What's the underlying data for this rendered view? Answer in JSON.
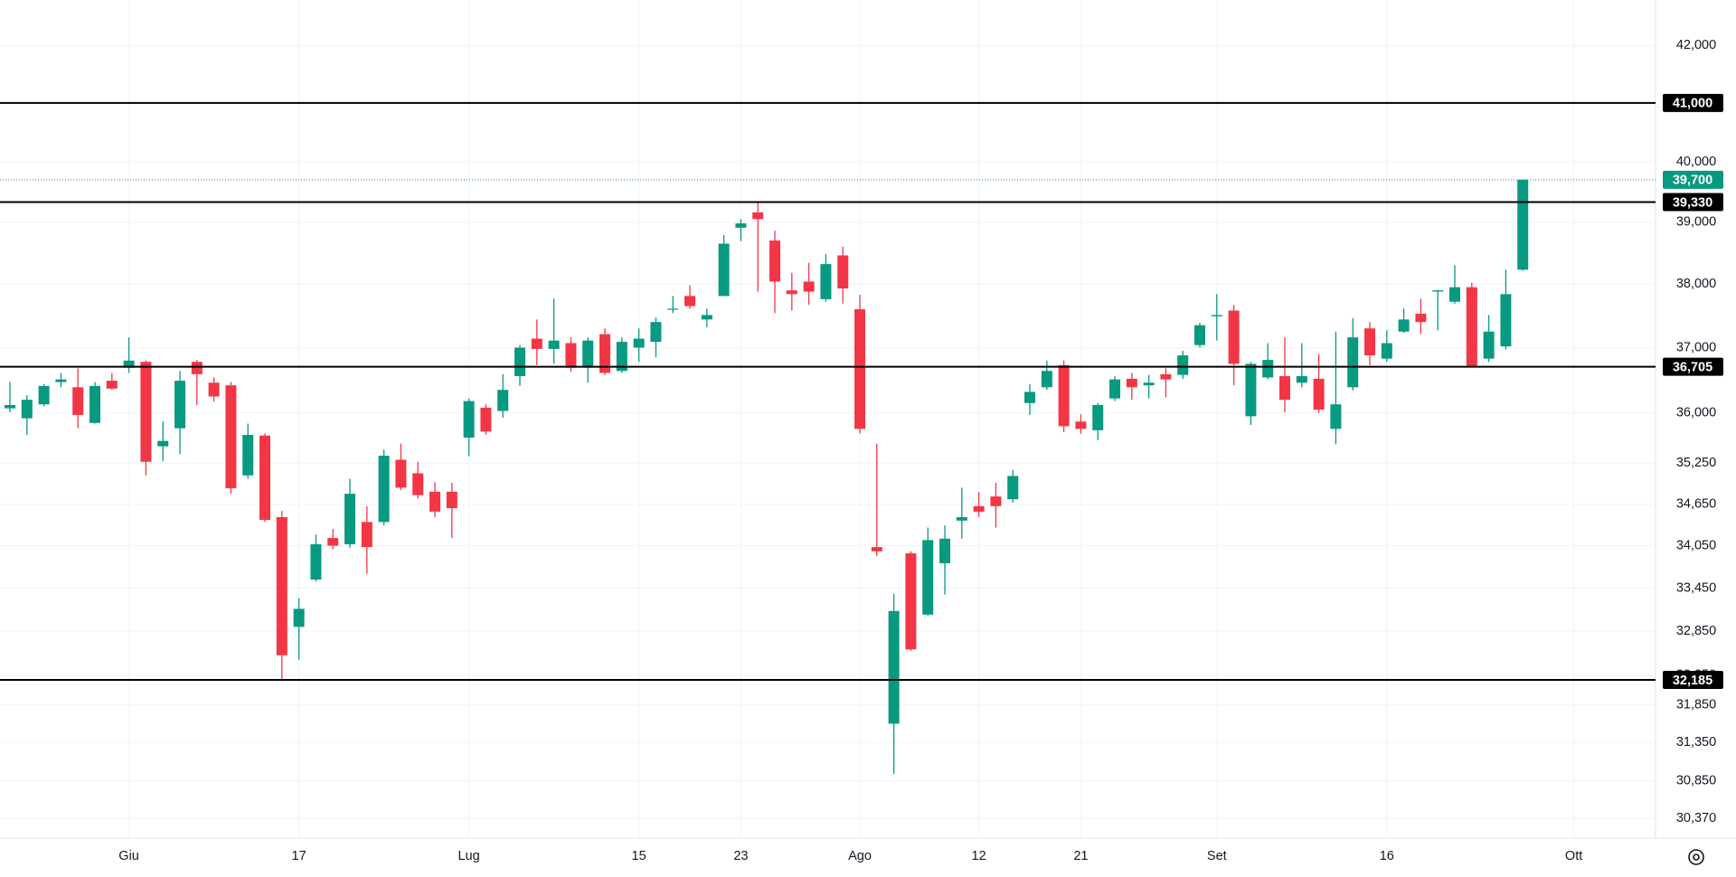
{
  "chart_data": {
    "type": "candlestick",
    "categories": [
      null,
      null,
      null,
      null,
      null,
      null,
      null,
      "Giu",
      null,
      null,
      null,
      null,
      null,
      null,
      null,
      null,
      null,
      "17",
      null,
      null,
      null,
      null,
      null,
      null,
      null,
      null,
      null,
      "Lug",
      null,
      null,
      null,
      null,
      null,
      null,
      null,
      null,
      null,
      "15",
      null,
      null,
      null,
      null,
      null,
      "23",
      null,
      null,
      null,
      null,
      null,
      null,
      "Ago",
      null,
      null,
      null,
      null,
      null,
      null,
      "12",
      null,
      null,
      null,
      null,
      null,
      "21",
      null,
      null,
      null,
      null,
      null,
      null,
      null,
      "Set",
      null,
      null,
      null,
      null,
      null,
      null,
      null,
      null,
      null,
      "16",
      null,
      null,
      null,
      null,
      null,
      null,
      null,
      null,
      null,
      null,
      "Ott"
    ],
    "open": [
      36070,
      35920,
      36130,
      36470,
      36390,
      35850,
      36490,
      36690,
      36780,
      35500,
      35770,
      36780,
      36460,
      36420,
      35070,
      35660,
      34460,
      32910,
      33570,
      34160,
      34070,
      34390,
      34390,
      35300,
      35100,
      34830,
      34830,
      35630,
      36080,
      36030,
      36560,
      37140,
      36980,
      37070,
      36690,
      37210,
      36640,
      37000,
      37090,
      37600,
      37810,
      37440,
      37810,
      38910,
      39160,
      38700,
      37900,
      38040,
      37760,
      38460,
      37600,
      34030,
      31600,
      33940,
      33080,
      33800,
      34410,
      34620,
      34760,
      34720,
      36150,
      36390,
      36730,
      35870,
      35740,
      36220,
      36520,
      36420,
      36590,
      36580,
      37040,
      37490,
      37580,
      35950,
      36540,
      36560,
      36460,
      36520,
      35760,
      36390,
      37300,
      36830,
      37250,
      37530,
      37880,
      37720,
      37950,
      36830,
      37020,
      38230,
      null,
      null,
      null
    ],
    "high": [
      36470,
      36270,
      36440,
      36610,
      36680,
      36470,
      36610,
      37160,
      36800,
      35870,
      36640,
      36810,
      36540,
      36470,
      35840,
      35690,
      34550,
      33310,
      34210,
      34290,
      35020,
      34620,
      35450,
      35540,
      35270,
      34970,
      34960,
      36220,
      36130,
      36590,
      37040,
      37440,
      37770,
      37160,
      37160,
      37300,
      37160,
      37300,
      37470,
      37810,
      37980,
      37610,
      38790,
      39050,
      39320,
      38860,
      38180,
      38340,
      38480,
      38600,
      37830,
      35540,
      33370,
      33970,
      34310,
      34340,
      34890,
      34830,
      34960,
      35150,
      36440,
      36800,
      36800,
      35980,
      36150,
      36560,
      36610,
      36580,
      36680,
      36950,
      37390,
      37840,
      37670,
      36780,
      37070,
      37160,
      37070,
      36900,
      37250,
      37460,
      37400,
      37270,
      37610,
      37770,
      37910,
      38300,
      38020,
      37510,
      38230,
      39700,
      null,
      null,
      null
    ],
    "low": [
      36010,
      35670,
      36100,
      36390,
      35770,
      35840,
      36350,
      36610,
      35070,
      35280,
      35380,
      36120,
      36170,
      34800,
      35020,
      34390,
      32190,
      32460,
      33540,
      34000,
      34020,
      33650,
      34340,
      34850,
      34730,
      34460,
      34160,
      35350,
      35670,
      35930,
      36410,
      36730,
      36750,
      36630,
      36460,
      36580,
      36610,
      36780,
      36850,
      37540,
      37610,
      37320,
      37810,
      38690,
      37880,
      37540,
      37580,
      37670,
      37720,
      37690,
      35690,
      33900,
      30940,
      32580,
      33060,
      33360,
      34150,
      34460,
      34310,
      34670,
      35970,
      36350,
      35710,
      35690,
      35590,
      36180,
      36200,
      36220,
      36240,
      36520,
      37000,
      37110,
      36420,
      35820,
      36510,
      36010,
      36390,
      36000,
      35530,
      36340,
      36730,
      36780,
      37230,
      37210,
      37270,
      37690,
      36710,
      36780,
      36970,
      38210,
      null,
      null,
      null
    ],
    "close": [
      36120,
      36200,
      36410,
      36510,
      35970,
      36410,
      36370,
      36800,
      35270,
      35580,
      36490,
      36590,
      36250,
      34880,
      35670,
      34420,
      32520,
      33160,
      34070,
      34050,
      34800,
      34030,
      35360,
      34890,
      34780,
      34540,
      34590,
      36180,
      35720,
      36350,
      37000,
      36980,
      37110,
      36690,
      37110,
      36610,
      37090,
      37140,
      37400,
      37610,
      37650,
      37510,
      38650,
      38980,
      39050,
      38040,
      37840,
      37880,
      38320,
      37930,
      35760,
      33970,
      33130,
      32600,
      34130,
      34150,
      34460,
      34540,
      34620,
      35060,
      36320,
      36640,
      35800,
      35760,
      36120,
      36510,
      36390,
      36460,
      36510,
      36880,
      37350,
      37510,
      36750,
      36750,
      36810,
      36200,
      36560,
      36050,
      36130,
      37160,
      36880,
      37070,
      37440,
      37400,
      37900,
      37950,
      36710,
      37250,
      37840,
      39700,
      null,
      null,
      null
    ],
    "up_color": "#089981",
    "down_color": "#f23645",
    "log_scale": true,
    "grid": true,
    "ylim": [
      30130,
      42810
    ],
    "yticks": [
      {
        "value": 42000,
        "label": "42,000"
      },
      {
        "value": 40000,
        "label": "40,000"
      },
      {
        "value": 39000,
        "label": "39,000"
      },
      {
        "value": 38000,
        "label": "38,000"
      },
      {
        "value": 37000,
        "label": "37,000"
      },
      {
        "value": 36000,
        "label": "36,000"
      },
      {
        "value": 35250,
        "label": "35,250"
      },
      {
        "value": 34650,
        "label": "34,650"
      },
      {
        "value": 34050,
        "label": "34,050"
      },
      {
        "value": 33450,
        "label": "33,450"
      },
      {
        "value": 32850,
        "label": "32,850"
      },
      {
        "value": 32250,
        "label": "32,250"
      },
      {
        "value": 31850,
        "label": "31,850"
      },
      {
        "value": 31350,
        "label": "31,350"
      },
      {
        "value": 30850,
        "label": "30,850"
      },
      {
        "value": 30370,
        "label": "30,370"
      }
    ],
    "levels": [
      {
        "value": 41000,
        "label": "41,000"
      },
      {
        "value": 39330,
        "label": "39,330"
      },
      {
        "value": 36705,
        "label": "36,705"
      },
      {
        "value": 32185,
        "label": "32,185"
      }
    ],
    "level_color": "#000000",
    "last_price": {
      "value": 39700,
      "label": "39,700",
      "color": "#089981"
    }
  }
}
